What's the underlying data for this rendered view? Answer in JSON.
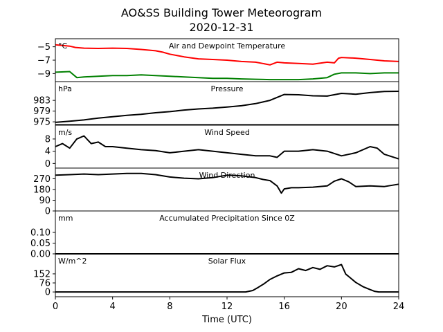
{
  "chart_data": {
    "type": "line",
    "title": "AO&SS Building Tower Meteorogram",
    "subtitle": "2020-12-31",
    "xlabel": "Time (UTC)",
    "xlim": [
      0,
      24
    ],
    "xticks": [
      0,
      4,
      8,
      12,
      16,
      20,
      24
    ],
    "grid": false,
    "panels": [
      {
        "title": "Air and Dewpoint Temperature",
        "unit": "°C",
        "ylim": [
          -10.2,
          -3.8
        ],
        "yticks": [
          -5,
          -7,
          -9
        ],
        "series": [
          {
            "color": "#ff0000",
            "x": [
              0,
              0.5,
              1,
              1.4,
              2,
              3,
              4,
              5,
              6,
              7,
              7.5,
              8,
              9,
              10,
              11,
              12,
              13,
              14,
              14.5,
              15,
              15.5,
              16,
              17,
              18,
              19,
              19.5,
              19.8,
              20,
              21,
              22,
              23,
              24
            ],
            "y": [
              -4.7,
              -4.8,
              -4.9,
              -5.1,
              -5.2,
              -5.25,
              -5.2,
              -5.25,
              -5.4,
              -5.6,
              -5.8,
              -6.1,
              -6.5,
              -6.8,
              -6.9,
              -7.0,
              -7.2,
              -7.3,
              -7.5,
              -7.7,
              -7.3,
              -7.4,
              -7.5,
              -7.6,
              -7.3,
              -7.4,
              -6.7,
              -6.6,
              -6.7,
              -6.9,
              -7.1,
              -7.2
            ]
          },
          {
            "color": "#008000",
            "x": [
              0,
              1,
              1.5,
              2,
              3,
              4,
              5,
              6,
              7,
              8,
              9,
              10,
              11,
              12,
              13,
              14,
              15,
              16,
              17,
              18,
              19,
              19.5,
              20,
              21,
              22,
              23,
              24
            ],
            "y": [
              -8.8,
              -8.7,
              -9.6,
              -9.5,
              -9.4,
              -9.3,
              -9.3,
              -9.2,
              -9.3,
              -9.4,
              -9.5,
              -9.6,
              -9.7,
              -9.7,
              -9.8,
              -9.85,
              -9.9,
              -9.9,
              -9.9,
              -9.8,
              -9.6,
              -9.1,
              -8.9,
              -8.9,
              -9.0,
              -8.9,
              -8.9
            ]
          }
        ]
      },
      {
        "title": "Pressure",
        "unit": "hPa",
        "ylim": [
          974,
          990
        ],
        "yticks": [
          983,
          979,
          975
        ],
        "series": [
          {
            "color": "#000000",
            "x": [
              0,
              1,
              2,
              3,
              4,
              5,
              6,
              7,
              8,
              9,
              10,
              11,
              12,
              13,
              14,
              15,
              16,
              17,
              18,
              19,
              20,
              21,
              22,
              23,
              24
            ],
            "y": [
              974.8,
              975.2,
              975.7,
              976.4,
              976.9,
              977.4,
              977.8,
              978.4,
              978.8,
              979.4,
              979.8,
              980.1,
              980.5,
              981.0,
              981.8,
              983.0,
              985.2,
              985.1,
              984.7,
              984.6,
              985.6,
              985.3,
              985.9,
              986.3,
              986.4
            ]
          }
        ]
      },
      {
        "title": "Wind Speed",
        "unit": "m/s",
        "ylim": [
          -1.5,
          12.5
        ],
        "yticks": [
          8,
          4,
          0
        ],
        "series": [
          {
            "color": "#000000",
            "x": [
              0,
              0.5,
              1,
              1.5,
              2,
              2.5,
              3,
              3.5,
              4,
              5,
              6,
              7,
              8,
              9,
              10,
              11,
              12,
              13,
              14,
              15,
              15.5,
              16,
              17,
              18,
              19,
              20,
              21,
              22,
              22.5,
              23,
              24
            ],
            "y": [
              5.5,
              6.5,
              5.0,
              8.0,
              9.0,
              6.5,
              7.0,
              5.5,
              5.5,
              5.0,
              4.5,
              4.2,
              3.5,
              4.0,
              4.5,
              4.0,
              3.5,
              3.0,
              2.5,
              2.5,
              2.0,
              4.0,
              4.0,
              4.5,
              4.0,
              2.5,
              3.5,
              5.5,
              5.0,
              3.0,
              1.5
            ]
          }
        ]
      },
      {
        "title": "Wind Direction",
        "unit": "",
        "ylim": [
          0,
          360
        ],
        "yticks": [
          270,
          180,
          90,
          0
        ],
        "series": [
          {
            "color": "#000000",
            "x": [
              0,
              1,
              2,
              3,
              4,
              5,
              6,
              7,
              8,
              9,
              10,
              11,
              12,
              13,
              14,
              14.5,
              15,
              15.5,
              15.8,
              16,
              16.5,
              17,
              18,
              19,
              19.5,
              20,
              20.5,
              21,
              22,
              23,
              24
            ],
            "y": [
              300,
              305,
              310,
              305,
              310,
              315,
              315,
              305,
              285,
              275,
              270,
              280,
              300,
              295,
              280,
              265,
              255,
              210,
              150,
              185,
              195,
              195,
              200,
              210,
              250,
              270,
              245,
              205,
              210,
              205,
              225
            ]
          }
        ]
      },
      {
        "title": "Accumulated Precipitation Since 0Z",
        "unit": "mm",
        "ylim": [
          0,
          0.2
        ],
        "yticks": [
          0.1,
          0.05,
          0.0
        ],
        "series": [
          {
            "color": "#000000",
            "x": [
              0,
              24
            ],
            "y": [
              0,
              0
            ]
          }
        ]
      },
      {
        "title": "Solar Flux",
        "unit": "W/m^2",
        "ylim": [
          -40,
          320
        ],
        "yticks": [
          152,
          76,
          0
        ],
        "series": [
          {
            "color": "#000000",
            "x": [
              0,
              2,
              4,
              6,
              8,
              10,
              12,
              13.3,
              13.8,
              14.2,
              14.6,
              15,
              15.5,
              16,
              16.5,
              17,
              17.5,
              18,
              18.5,
              19,
              19.5,
              20,
              20.3,
              20.6,
              21,
              21.5,
              22,
              22.3,
              22.6,
              23,
              24
            ],
            "y": [
              0,
              0,
              0,
              0,
              0,
              0,
              0,
              0,
              12,
              40,
              70,
              105,
              135,
              160,
              165,
              195,
              180,
              205,
              190,
              220,
              210,
              230,
              150,
              120,
              80,
              45,
              20,
              6,
              0,
              0,
              0
            ]
          }
        ]
      }
    ]
  }
}
